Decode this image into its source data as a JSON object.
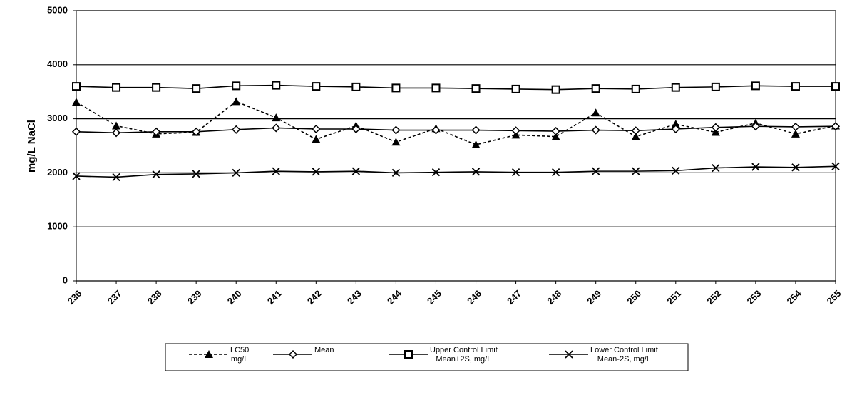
{
  "chart_data": {
    "type": "line",
    "y_label": "mg/L NaCl",
    "categories": [
      "236",
      "237",
      "238",
      "239",
      "240",
      "241",
      "242",
      "243",
      "244",
      "245",
      "246",
      "247",
      "248",
      "249",
      "250",
      "251",
      "252",
      "253",
      "254",
      "255"
    ],
    "ylim": [
      0,
      5000
    ],
    "yticks": [
      0,
      1000,
      2000,
      3000,
      4000,
      5000
    ],
    "grid": true,
    "series": [
      {
        "name": "LC50\nmg/L",
        "color": "#000000",
        "marker": "triangle",
        "dashed": true,
        "values": [
          3310,
          2870,
          2720,
          2750,
          3320,
          3020,
          2620,
          2870,
          2570,
          2820,
          2520,
          2700,
          2670,
          3110,
          2670,
          2900,
          2750,
          2920,
          2720,
          2870
        ]
      },
      {
        "name": "Mean",
        "color": "#000000",
        "marker": "diamond",
        "dashed": false,
        "values": [
          2760,
          2740,
          2760,
          2760,
          2800,
          2830,
          2810,
          2810,
          2790,
          2790,
          2790,
          2780,
          2770,
          2790,
          2780,
          2810,
          2840,
          2860,
          2850,
          2860
        ]
      },
      {
        "name": "Upper Control Limit\nMean+2S, mg/L",
        "color": "#000000",
        "marker": "square",
        "dashed": false,
        "values": [
          3600,
          3580,
          3580,
          3560,
          3610,
          3620,
          3600,
          3590,
          3570,
          3570,
          3560,
          3550,
          3540,
          3560,
          3550,
          3580,
          3590,
          3610,
          3600,
          3600
        ]
      },
      {
        "name": "Lower Control Limit\nMean-2S, mg/L",
        "color": "#000000",
        "marker": "x",
        "dashed": false,
        "values": [
          1940,
          1920,
          1970,
          1980,
          2000,
          2030,
          2020,
          2030,
          2000,
          2010,
          2020,
          2010,
          2010,
          2030,
          2030,
          2040,
          2090,
          2110,
          2100,
          2120
        ]
      }
    ]
  }
}
